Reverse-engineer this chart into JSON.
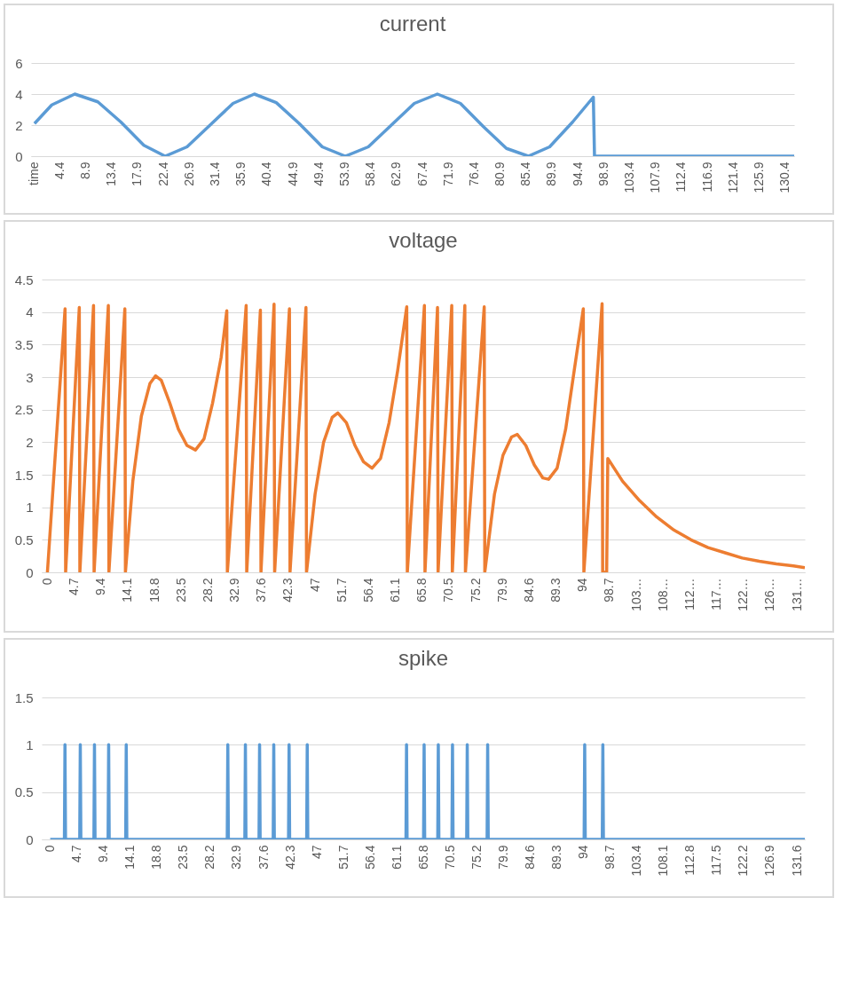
{
  "chart_data": [
    {
      "type": "line",
      "title": "current",
      "x": [
        0,
        3,
        7,
        11,
        15,
        19,
        22.7,
        26.5,
        30.5,
        34.5,
        38.2,
        42,
        46,
        50,
        54,
        58,
        62,
        66,
        70,
        74,
        78,
        82,
        85.8,
        89.5,
        93.5,
        97.1,
        97.3,
        132
      ],
      "series": [
        {
          "color": "#5b9bd5",
          "values": [
            2.1,
            3.3,
            4,
            3.5,
            2.2,
            0.7,
            0,
            0.6,
            2,
            3.4,
            4,
            3.45,
            2.1,
            0.6,
            0,
            0.6,
            2,
            3.4,
            4,
            3.4,
            1.9,
            0.5,
            0,
            0.6,
            2.2,
            3.8,
            0,
            0
          ]
        }
      ],
      "xlim": [
        -0.6,
        132
      ],
      "xticks": [
        {
          "value": -0.1,
          "label": "time"
        },
        4.4,
        8.9,
        13.4,
        17.9,
        22.4,
        26.9,
        31.4,
        35.9,
        40.4,
        44.9,
        49.4,
        53.9,
        58.4,
        62.9,
        67.4,
        71.9,
        76.4,
        80.9,
        85.4,
        89.9,
        94.4,
        98.9,
        103.4,
        107.9,
        112.4,
        116.9,
        121.4,
        125.9,
        130.4
      ],
      "ylim": [
        0,
        6
      ],
      "yticks": [
        0,
        2,
        4,
        6
      ],
      "grid": "y"
    },
    {
      "type": "line",
      "title": "voltage",
      "x": [
        0,
        3.1,
        3.2,
        5.6,
        5.7,
        8.1,
        8.2,
        10.7,
        10.8,
        13.6,
        13.7,
        15,
        16.5,
        18,
        19,
        20,
        21.5,
        23,
        24.5,
        26,
        27.5,
        29,
        30.5,
        31.5,
        31.6,
        34.9,
        35,
        37.4,
        37.5,
        39.8,
        39.9,
        42.5,
        42.6,
        45.4,
        45.5,
        47,
        48.5,
        50,
        51,
        52.5,
        54,
        55.5,
        57,
        58.5,
        60,
        61.5,
        63.1,
        63.2,
        66.2,
        66.3,
        68.5,
        68.6,
        71,
        71.1,
        73.3,
        73.4,
        76.7,
        76.8,
        78.5,
        80,
        81.5,
        82.5,
        84,
        85.5,
        87,
        88,
        89.5,
        91,
        92.5,
        94.1,
        94.2,
        97.4,
        97.5,
        98.2,
        98.4,
        101,
        104,
        107,
        110,
        113,
        116,
        119,
        122,
        125,
        128,
        131,
        133
      ],
      "series": [
        {
          "color": "#ed7d31",
          "values": [
            0,
            4.05,
            0,
            4.07,
            0,
            4.1,
            0,
            4.1,
            0,
            4.05,
            0,
            1.4,
            2.4,
            2.9,
            3.02,
            2.95,
            2.6,
            2.2,
            1.95,
            1.88,
            2.05,
            2.6,
            3.3,
            4.02,
            0,
            4.1,
            0,
            4.03,
            0,
            4.12,
            0,
            4.05,
            0,
            4.07,
            0,
            1.2,
            2,
            2.38,
            2.45,
            2.3,
            1.95,
            1.7,
            1.6,
            1.75,
            2.3,
            3.1,
            4.08,
            0,
            4.1,
            0,
            4.07,
            0,
            4.1,
            0,
            4.1,
            0,
            4.08,
            0,
            1.2,
            1.8,
            2.08,
            2.12,
            1.95,
            1.65,
            1.45,
            1.43,
            1.6,
            2.2,
            3.1,
            4.05,
            0,
            4.13,
            0,
            0,
            1.75,
            1.4,
            1.1,
            0.85,
            0.65,
            0.5,
            0.38,
            0.3,
            0.22,
            0.17,
            0.13,
            0.1,
            0.07
          ]
        }
      ],
      "xlim": [
        -1,
        133
      ],
      "xticks": [
        0,
        4.7,
        9.4,
        14.1,
        18.8,
        23.5,
        28.2,
        32.9,
        37.6,
        42.3,
        47,
        51.7,
        56.4,
        61.1,
        65.8,
        70.5,
        75.2,
        79.9,
        84.6,
        89.3,
        94,
        98.7,
        {
          "value": 103.4,
          "label": "103…"
        },
        {
          "value": 108.1,
          "label": "108…"
        },
        {
          "value": 112.8,
          "label": "112…"
        },
        {
          "value": 117.5,
          "label": "117…"
        },
        {
          "value": 122.2,
          "label": "122…"
        },
        {
          "value": 126.9,
          "label": "126…"
        },
        {
          "value": 131.6,
          "label": "131…"
        }
      ],
      "ylim": [
        0,
        4.5
      ],
      "yticks": [
        0,
        0.5,
        1,
        1.5,
        2,
        2.5,
        3,
        3.5,
        4,
        4.5
      ],
      "grid": "y"
    },
    {
      "type": "line",
      "title": "spike",
      "x": [
        0,
        2.5,
        2.6,
        2.7,
        5.2,
        5.3,
        5.4,
        7.7,
        7.8,
        7.9,
        10.2,
        10.3,
        10.4,
        13.3,
        13.4,
        13.5,
        31.2,
        31.3,
        31.4,
        34.3,
        34.4,
        34.5,
        36.8,
        36.9,
        37,
        39.3,
        39.4,
        39.5,
        42,
        42.1,
        42.2,
        45.2,
        45.3,
        45.4,
        62.7,
        62.8,
        62.9,
        65.8,
        65.9,
        66,
        68.3,
        68.4,
        68.5,
        70.8,
        70.9,
        71,
        73.4,
        73.5,
        73.6,
        77,
        77.1,
        77.2,
        94.1,
        94.2,
        94.3,
        97.3,
        97.4,
        97.5,
        133
      ],
      "series": [
        {
          "color": "#5b9bd5",
          "values": [
            0,
            0,
            1,
            0,
            0,
            1,
            0,
            0,
            1,
            0,
            0,
            1,
            0,
            0,
            1,
            0,
            0,
            1,
            0,
            0,
            1,
            0,
            0,
            1,
            0,
            0,
            1,
            0,
            0,
            1,
            0,
            0,
            1,
            0,
            0,
            1,
            0,
            0,
            1,
            0,
            0,
            1,
            0,
            0,
            1,
            0,
            0,
            1,
            0,
            0,
            1,
            0,
            0,
            1,
            0,
            0,
            1,
            0,
            0
          ]
        }
      ],
      "xlim": [
        -1.5,
        133
      ],
      "xticks": [
        0,
        4.7,
        9.4,
        14.1,
        18.8,
        23.5,
        28.2,
        32.9,
        37.6,
        42.3,
        47,
        51.7,
        56.4,
        61.1,
        65.8,
        70.5,
        75.2,
        79.9,
        84.6,
        89.3,
        94,
        98.7,
        103.4,
        108.1,
        112.8,
        117.5,
        122.2,
        126.9,
        131.6
      ],
      "ylim": [
        0,
        1.5
      ],
      "yticks": [
        0,
        0.5,
        1,
        1.5
      ],
      "grid": "y"
    }
  ]
}
